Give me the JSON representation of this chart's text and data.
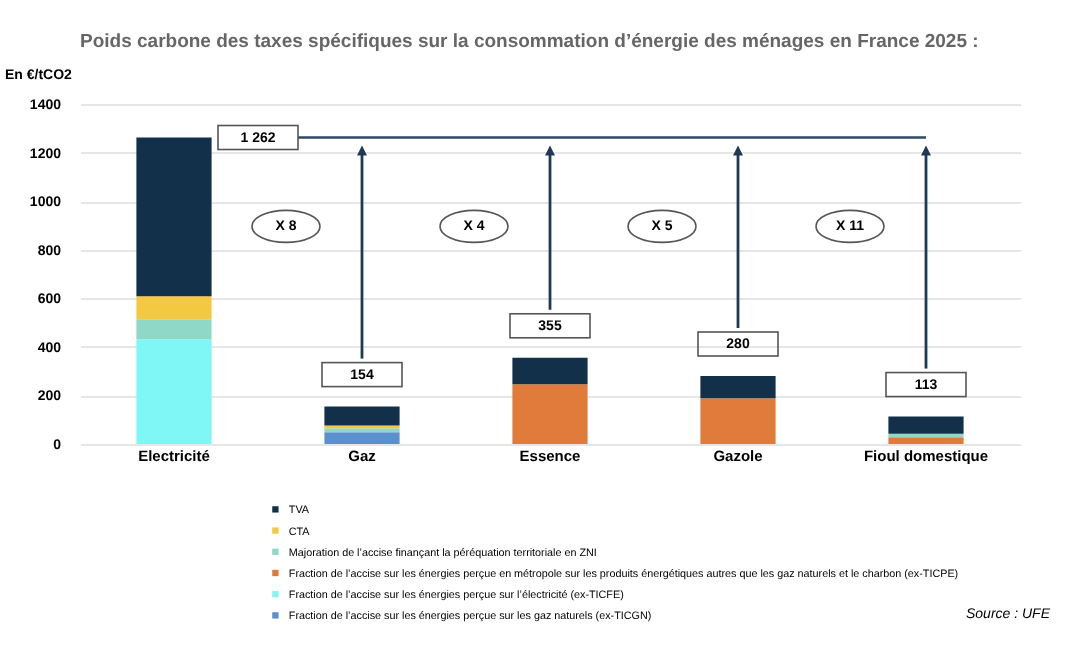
{
  "chart_data": {
    "type": "bar",
    "stacked": true,
    "title": "Poids carbone des taxes spécifiques sur la consommation d’énergie des ménages en France 2025 :",
    "ylabel": "En €/tCO2",
    "categories": [
      "Electricité",
      "Gaz",
      "Essence",
      "Gazole",
      "Fioul domestique"
    ],
    "series": [
      {
        "name": "Fraction de l’accise sur les énergies perçue sur les gaz naturels (ex-TICGN)",
        "color": "#5b8fd0",
        "values": [
          null,
          48,
          null,
          null,
          null
        ]
      },
      {
        "name": "Fraction de l’accise sur les énergies perçue sur l’électricité (ex-TICFE)",
        "color": "#7ff7f7",
        "values": [
          431,
          null,
          null,
          null,
          null
        ]
      },
      {
        "name": "Fraction de l’accise sur les énergies perçue en métropole sur les produits énergétiques autres que les gaz naturels et le charbon (ex-TICPE)",
        "color": "#e07b3c",
        "values": [
          null,
          null,
          246,
          188,
          28
        ]
      },
      {
        "name": "Majoration de l’accise finançant la péréquation territoriale en ZNI",
        "color": "#8fd8c8",
        "values": [
          83,
          17,
          null,
          null,
          14
        ]
      },
      {
        "name": "CTA",
        "color": "#f5c842",
        "values": [
          94,
          11,
          null,
          null,
          null
        ]
      },
      {
        "name": "TVA",
        "color": "#12304a",
        "values": [
          654,
          78,
          109,
          92,
          71
        ]
      }
    ],
    "totals": [
      "1 262",
      "154",
      "355",
      "280",
      "113"
    ],
    "ylim": [
      0,
      1400
    ],
    "yticks": [
      0,
      200,
      400,
      600,
      800,
      1000,
      1200,
      1400
    ],
    "grid": "y",
    "legend": "bottom",
    "ref_lines": [
      {
        "axis": "y",
        "value": 1262,
        "color": "#2e4a66"
      }
    ],
    "annotations": [
      "X 8",
      "X 4",
      "X 5",
      "X 11",
      "Source : UFE"
    ]
  }
}
